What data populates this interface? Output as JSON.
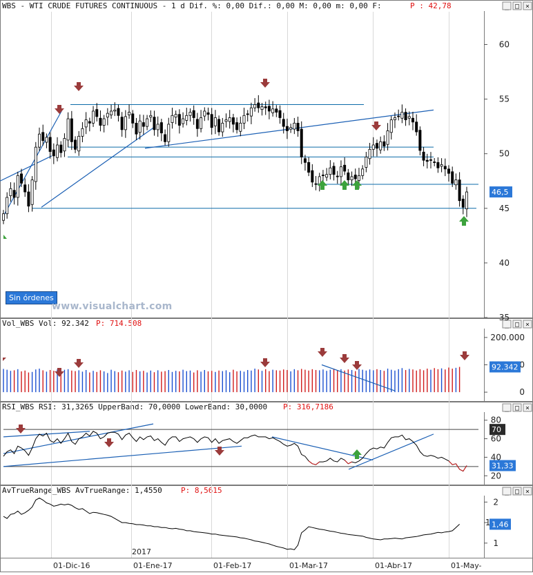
{
  "header": {
    "main_title": "WBS - WTI CRUDE FUTURES CONTINUOUS -  1 d Dif. %: 0,00 Dif.: 0,00 M: 0,00 m: 0,00 F:",
    "main_p_label": "P : 42,78",
    "vol_title": "Vol_WBS Vol: 92.342",
    "vol_p_label": "P: 714.508",
    "rsi_title": "RSI_WBS RSI: 31,3265 UpperBand: 70,0000 LowerBand: 30,0000",
    "rsi_p_label": "P: 316,7186",
    "atr_title": "AvTrueRange_WBS AvTrueRange: 1,4550",
    "atr_p_label": "P: 8,5615"
  },
  "panel_buttons": {
    "min": "_",
    "max": "□",
    "close": "×"
  },
  "order_button": "Sin órdenes",
  "watermark": "www.visualchart.com",
  "year_label": "2017",
  "colors": {
    "up": "#ffffff",
    "down": "#000000",
    "trend": "#1a5fb4",
    "support": "#0a6aa8",
    "arrow_down": "#9b3b3b",
    "arrow_up": "#3ca23c",
    "badge": "#2b78d8"
  },
  "chart_data": [
    {
      "type": "candlestick",
      "ylim": [
        35,
        63
      ],
      "yticks": [
        35,
        40,
        45,
        50,
        55,
        60
      ],
      "x_ticks": [
        "01-Dic-16",
        "01-Ene-17",
        "01-Feb-17",
        "01-Mar-17",
        "01-Abr-17",
        "01-May-"
      ],
      "last_value_label": "46,5",
      "horizontal_levels": [
        54.5,
        50.6,
        49.7,
        47.2,
        45.0
      ],
      "close": [
        44.5,
        46,
        46.8,
        46,
        48,
        47.3,
        46.5,
        45.2,
        47.6,
        50.6,
        51.8,
        51.2,
        51.5,
        50.2,
        49.8,
        50.8,
        50.1,
        51.4,
        53.2,
        51.1,
        50.4,
        51.6,
        52.3,
        53.1,
        52.8,
        53.9,
        53.4,
        52.6,
        53.2,
        53.7,
        53.9,
        54,
        53.5,
        52.2,
        53.4,
        53.8,
        52.8,
        51.8,
        53,
        52.5,
        53.2,
        53.5,
        52.2,
        52.7,
        51.9,
        51.1,
        52.7,
        53.5,
        53.6,
        52.6,
        53.2,
        53.5,
        53.8,
        53.3,
        52.3,
        53.3,
        53.9,
        53.6,
        52.4,
        53.3,
        52,
        52.8,
        53.1,
        53.3,
        52.7,
        52.2,
        52.8,
        53.5,
        53.6,
        54.2,
        54.5,
        54.2,
        54.3,
        54.2,
        53.9,
        54.1,
        53.8,
        53.3,
        52.5,
        52.1,
        52.4,
        52.8,
        52.1,
        49.7,
        49.2,
        48.3,
        47.4,
        47.2,
        47.9,
        48,
        48.1,
        48.7,
        48.1,
        47.9,
        48.8,
        48.4,
        47.6,
        47.9,
        47.7,
        48,
        48.6,
        49.7,
        50.4,
        50.8,
        50.5,
        51.1,
        50.7,
        52.1,
        53.1,
        53.3,
        53.4,
        53.8,
        53.1,
        53.4,
        52.9,
        52,
        50.3,
        49.4,
        49.3,
        49.4,
        49.2,
        48.7,
        49,
        48.6,
        48.2,
        47.3,
        47.6,
        45.7,
        45.1,
        46.5
      ],
      "ohlc_source": "close values read from the price chart"
    },
    {
      "type": "bar",
      "name": "Vol",
      "ylim": [
        -30000,
        230000
      ],
      "yticks": [
        0,
        100000,
        200000
      ],
      "ytick_labels": [
        "0",
        "100.000",
        "200.000"
      ],
      "last_value_label": "92.342",
      "values": [
        85000,
        82000,
        78000,
        80000,
        84000,
        76000,
        79000,
        72000,
        74000,
        83000,
        86000,
        80000,
        75000,
        81000,
        78000,
        83000,
        76000,
        82000,
        84000,
        79000,
        77000,
        80000,
        75000,
        81000,
        72000,
        78000,
        74000,
        80000,
        76000,
        70000,
        82000,
        77000,
        73000,
        79000,
        75000,
        80000,
        74000,
        81000,
        76000,
        78000,
        72000,
        79000,
        73000,
        80000,
        75000,
        77000,
        81000,
        74000,
        78000,
        76000,
        82000,
        77000,
        79000,
        72000,
        80000,
        75000,
        81000,
        76000,
        78000,
        74000,
        79000,
        77000,
        80000,
        73000,
        82000,
        76000,
        78000,
        75000,
        81000,
        79000,
        86000,
        83000,
        78000,
        84000,
        77000,
        82000,
        80000,
        79000,
        83000,
        81000,
        76000,
        84000,
        80000,
        85000,
        82000,
        79000,
        84000,
        81000,
        80000,
        83000,
        78000,
        82000,
        86000,
        80000,
        84000,
        79000,
        83000,
        81000,
        77000,
        85000,
        82000,
        79000,
        83000,
        80000,
        84000,
        81000,
        78000,
        86000,
        82000,
        79000,
        84000,
        88000,
        81000,
        85000,
        83000,
        79000,
        84000,
        80000,
        86000,
        82000,
        88000,
        84000,
        87000,
        83000,
        90000,
        86000,
        89000,
        92342
      ]
    },
    {
      "type": "line",
      "name": "RSI",
      "ylim": [
        12,
        88
      ],
      "yticks": [
        20,
        40,
        60,
        80
      ],
      "bands": [
        70,
        30
      ],
      "band_label_upper": "70",
      "last_value_label": "31,33",
      "values": [
        41,
        46,
        48,
        44,
        52,
        50,
        47,
        42,
        50,
        60,
        65,
        63,
        66,
        58,
        56,
        60,
        55,
        60,
        66,
        57,
        54,
        60,
        62,
        66,
        63,
        68,
        66,
        60,
        62,
        66,
        67,
        67,
        65,
        59,
        64,
        66,
        61,
        57,
        62,
        59,
        62,
        63,
        58,
        60,
        56,
        53,
        59,
        62,
        62,
        57,
        60,
        61,
        62,
        60,
        56,
        60,
        62,
        61,
        56,
        60,
        55,
        58,
        59,
        60,
        57,
        55,
        58,
        61,
        61,
        63,
        64,
        62,
        62,
        62,
        60,
        61,
        59,
        57,
        54,
        52,
        53,
        55,
        52,
        43,
        41,
        36,
        33,
        32,
        35,
        35,
        36,
        39,
        36,
        35,
        39,
        37,
        33,
        35,
        34,
        36,
        39,
        44,
        48,
        50,
        49,
        51,
        50,
        56,
        61,
        62,
        62,
        64,
        59,
        60,
        57,
        53,
        46,
        42,
        41,
        42,
        41,
        39,
        40,
        38,
        36,
        32,
        33,
        27,
        25,
        31
      ]
    },
    {
      "type": "line",
      "name": "AvTrueRange",
      "ylim": [
        0.66,
        2.14
      ],
      "yticks": [
        1,
        1.5,
        2
      ],
      "ytick_labels": [
        "1",
        "1,5",
        "2"
      ],
      "last_value_label": "1,46",
      "values": [
        1.65,
        1.6,
        1.7,
        1.72,
        1.78,
        1.7,
        1.74,
        1.8,
        1.88,
        2.05,
        2.1,
        2.05,
        1.98,
        1.95,
        1.9,
        1.92,
        1.95,
        1.93,
        1.95,
        1.92,
        1.86,
        1.82,
        1.84,
        1.78,
        1.72,
        1.75,
        1.74,
        1.72,
        1.7,
        1.68,
        1.65,
        1.6,
        1.55,
        1.5,
        1.5,
        1.48,
        1.47,
        1.45,
        1.45,
        1.44,
        1.42,
        1.42,
        1.4,
        1.4,
        1.38,
        1.38,
        1.36,
        1.35,
        1.36,
        1.34,
        1.33,
        1.3,
        1.3,
        1.28,
        1.27,
        1.26,
        1.25,
        1.24,
        1.22,
        1.22,
        1.2,
        1.19,
        1.18,
        1.17,
        1.16,
        1.15,
        1.13,
        1.12,
        1.1,
        1.08,
        1.05,
        1.04,
        1.02,
        1.0,
        0.98,
        0.95,
        0.92,
        0.9,
        0.88,
        0.85,
        0.86,
        0.84,
        0.95,
        1.25,
        1.32,
        1.4,
        1.38,
        1.36,
        1.34,
        1.33,
        1.31,
        1.29,
        1.28,
        1.26,
        1.24,
        1.23,
        1.21,
        1.2,
        1.19,
        1.18,
        1.17,
        1.14,
        1.12,
        1.1,
        1.09,
        1.08,
        1.1,
        1.1,
        1.11,
        1.12,
        1.11,
        1.1,
        1.13,
        1.14,
        1.15,
        1.16,
        1.18,
        1.2,
        1.21,
        1.22,
        1.24,
        1.26,
        1.25,
        1.27,
        1.28,
        1.3,
        1.38,
        1.46
      ]
    }
  ]
}
